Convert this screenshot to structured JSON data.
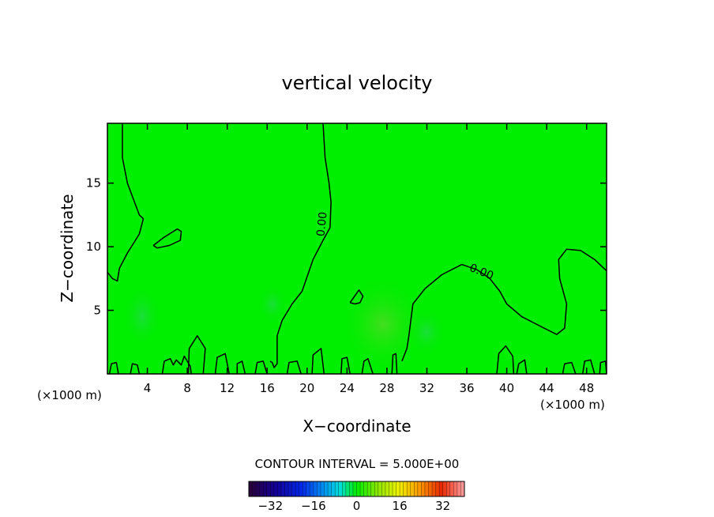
{
  "chart_data": {
    "type": "heatmap",
    "title": "vertical velocity",
    "xlabel": "X−coordinate",
    "ylabel": "Z−coordinate",
    "x_unit": "(×1000 m)",
    "y_unit": "(×1000 m)",
    "xlim": [
      0,
      50
    ],
    "ylim": [
      0,
      19.7
    ],
    "x_ticks": [
      4,
      8,
      12,
      16,
      20,
      24,
      28,
      32,
      36,
      40,
      44,
      48
    ],
    "y_ticks": [
      5,
      10,
      15
    ],
    "x_tick_labels": [
      "4",
      "8",
      "12",
      "16",
      "20",
      "24",
      "28",
      "32",
      "36",
      "40",
      "44",
      "48"
    ],
    "y_tick_labels": [
      "5",
      "10",
      "15"
    ],
    "background_color": "#00ee00",
    "contour_level": 0,
    "contour_labels": [
      "0.00",
      "0.00"
    ],
    "contour_interval_text": "CONTOUR INTERVAL = 5.000E+00",
    "colorbar": {
      "min": -40,
      "max": 40,
      "ticks": [
        -32,
        -16,
        0,
        16,
        32
      ],
      "tick_labels": [
        "−32",
        "−16",
        "0",
        "16",
        "32"
      ]
    },
    "contours": [
      {
        "points": [
          [
            1.5,
            19.7
          ],
          [
            1.5,
            17
          ],
          [
            2,
            15
          ],
          [
            3.2,
            12.5
          ],
          [
            3.6,
            12.2
          ],
          [
            3.2,
            11
          ],
          [
            2,
            9.5
          ],
          [
            1.2,
            8.3
          ],
          [
            1,
            7.3
          ],
          [
            0.5,
            7.5
          ],
          [
            0,
            8
          ]
        ]
      },
      {
        "points": [
          [
            4.6,
            10.1
          ],
          [
            5.6,
            10.7
          ],
          [
            7,
            11.4
          ],
          [
            7.4,
            11.2
          ],
          [
            7.3,
            10.5
          ],
          [
            6.2,
            10.1
          ],
          [
            5,
            9.9
          ],
          [
            4.6,
            10.1
          ]
        ]
      },
      {
        "points": [
          [
            21.6,
            19.7
          ],
          [
            21.8,
            17
          ],
          [
            22.2,
            15
          ],
          [
            22.4,
            13.5
          ],
          [
            22.3,
            11.5
          ],
          [
            21.6,
            10.5
          ],
          [
            20.6,
            9
          ],
          [
            19.5,
            6.5
          ],
          [
            18.5,
            5.5
          ],
          [
            17.5,
            4.2
          ],
          [
            17,
            3
          ],
          [
            17,
            1.2
          ],
          [
            17,
            0.8
          ],
          [
            16.7,
            0.5
          ],
          [
            16.5,
            0.9
          ],
          [
            16.3,
            1
          ]
        ]
      },
      {
        "points": [
          [
            24.3,
            5.6
          ],
          [
            25.2,
            6.6
          ],
          [
            25.6,
            6.1
          ],
          [
            25.3,
            5.6
          ],
          [
            24.8,
            5.5
          ],
          [
            24.3,
            5.6
          ]
        ]
      },
      {
        "points": [
          [
            29.5,
            1
          ],
          [
            30,
            2
          ],
          [
            30.2,
            3
          ],
          [
            30.6,
            5.5
          ],
          [
            31.8,
            6.7
          ],
          [
            33.5,
            7.8
          ],
          [
            35.5,
            8.6
          ],
          [
            37,
            8.2
          ],
          [
            38.3,
            7.5
          ],
          [
            39.3,
            6.5
          ],
          [
            40,
            5.5
          ],
          [
            41.5,
            4.5
          ],
          [
            43.5,
            3.7
          ],
          [
            45,
            3.1
          ],
          [
            45.8,
            3.6
          ],
          [
            46,
            5.5
          ],
          [
            45.3,
            7.5
          ],
          [
            45.2,
            9
          ],
          [
            46,
            9.8
          ],
          [
            47.4,
            9.7
          ],
          [
            48.8,
            9
          ],
          [
            50,
            8.1
          ]
        ]
      },
      {
        "points": [
          [
            0.2,
            0
          ],
          [
            0.4,
            0.8
          ],
          [
            0.9,
            0.9
          ],
          [
            1.1,
            0
          ]
        ]
      },
      {
        "points": [
          [
            2.3,
            0
          ],
          [
            2.5,
            0.8
          ],
          [
            3,
            0.7
          ],
          [
            3.2,
            0
          ]
        ]
      },
      {
        "points": [
          [
            5.5,
            0
          ],
          [
            5.7,
            1
          ],
          [
            6.3,
            1.2
          ],
          [
            6.6,
            0.7
          ],
          [
            6.9,
            1.1
          ],
          [
            7.4,
            0.7
          ],
          [
            7.7,
            1.4
          ],
          [
            8.3,
            0.6
          ],
          [
            8.4,
            0
          ]
        ]
      },
      {
        "points": [
          [
            8.1,
            0
          ],
          [
            8.2,
            2
          ],
          [
            9,
            3
          ],
          [
            9.8,
            2
          ],
          [
            9.6,
            0
          ]
        ]
      },
      {
        "points": [
          [
            10.8,
            0
          ],
          [
            11,
            1.3
          ],
          [
            11.8,
            1.6
          ],
          [
            12.2,
            0
          ]
        ]
      },
      {
        "points": [
          [
            13,
            0
          ],
          [
            13,
            0.8
          ],
          [
            13.5,
            1
          ],
          [
            13.8,
            0
          ]
        ]
      },
      {
        "points": [
          [
            14.8,
            0
          ],
          [
            15,
            0.9
          ],
          [
            15.6,
            1
          ],
          [
            16,
            0
          ]
        ]
      },
      {
        "points": [
          [
            18,
            0
          ],
          [
            18.2,
            0.9
          ],
          [
            19,
            1
          ],
          [
            19.4,
            0
          ]
        ]
      },
      {
        "points": [
          [
            20.5,
            0
          ],
          [
            20.6,
            1.5
          ],
          [
            21.4,
            2
          ],
          [
            21.7,
            0
          ]
        ]
      },
      {
        "points": [
          [
            23.4,
            0
          ],
          [
            23.5,
            1.2
          ],
          [
            24,
            1.3
          ],
          [
            24.3,
            0
          ]
        ]
      },
      {
        "points": [
          [
            25.5,
            0
          ],
          [
            25.7,
            1
          ],
          [
            26.1,
            1.2
          ],
          [
            26.6,
            0
          ]
        ]
      },
      {
        "points": [
          [
            28.5,
            0
          ],
          [
            28.6,
            1.5
          ],
          [
            28.9,
            1.6
          ],
          [
            29,
            0
          ]
        ]
      },
      {
        "points": [
          [
            39,
            0
          ],
          [
            39.2,
            1.6
          ],
          [
            39.9,
            2.2
          ],
          [
            40.6,
            1.4
          ],
          [
            40.7,
            0
          ]
        ]
      },
      {
        "points": [
          [
            41,
            0
          ],
          [
            41.2,
            0.8
          ],
          [
            41.8,
            1.1
          ],
          [
            42,
            0
          ]
        ]
      },
      {
        "points": [
          [
            45.6,
            0
          ],
          [
            45.8,
            0.8
          ],
          [
            46.5,
            0.9
          ],
          [
            46.9,
            0
          ]
        ]
      },
      {
        "points": [
          [
            47.6,
            0
          ],
          [
            47.8,
            1
          ],
          [
            48.4,
            1.1
          ],
          [
            48.8,
            0
          ]
        ]
      },
      {
        "points": [
          [
            49.3,
            0
          ],
          [
            49.4,
            0.9
          ],
          [
            49.9,
            1
          ],
          [
            50,
            0
          ]
        ]
      }
    ]
  }
}
